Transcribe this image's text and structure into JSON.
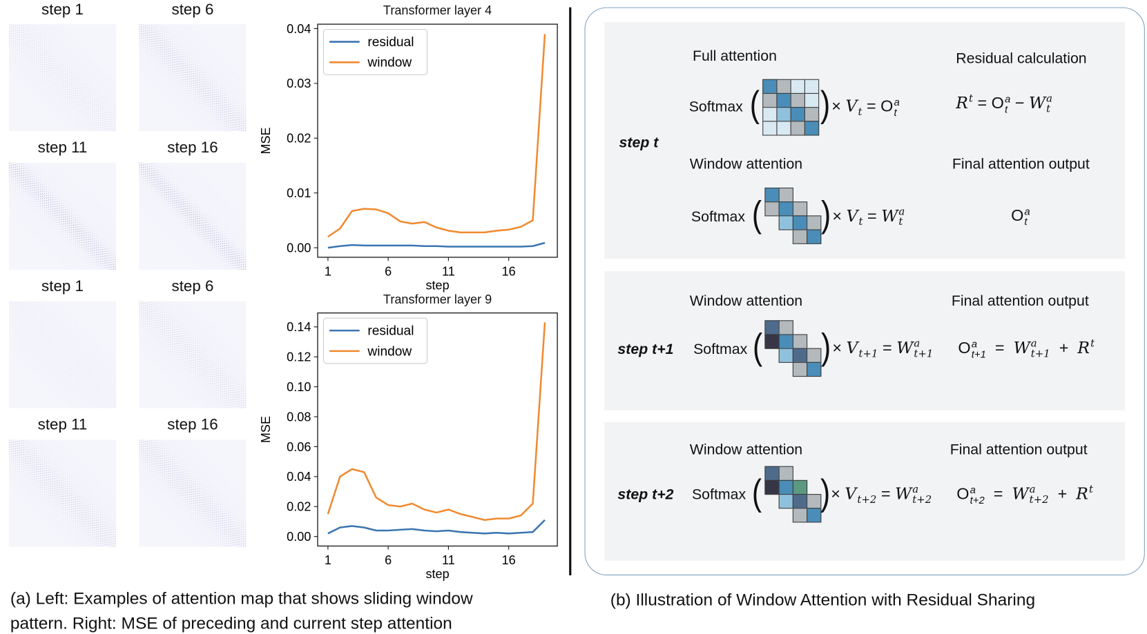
{
  "heatmaps": {
    "labels": [
      "step 1",
      "step 6",
      "step 11",
      "step 16",
      "step 1",
      "step 6",
      "step 11",
      "step 16"
    ]
  },
  "chart_data": [
    {
      "type": "line",
      "title": "Transformer layer 4",
      "xlabel": "step",
      "ylabel": "MSE",
      "x": [
        1,
        2,
        3,
        4,
        5,
        6,
        7,
        8,
        9,
        10,
        11,
        12,
        13,
        14,
        15,
        16,
        17,
        18,
        19
      ],
      "xticks": [
        "1",
        "6",
        "11",
        "16"
      ],
      "yticks": [
        "0.00",
        "0.01",
        "0.02",
        "0.03",
        "0.04"
      ],
      "ylim": [
        0,
        0.04
      ],
      "xlim": [
        1,
        19
      ],
      "legend": "top-left",
      "series": [
        {
          "name": "residual",
          "color": "#3a75b0",
          "values": [
            0.0,
            0.0003,
            0.0005,
            0.0004,
            0.0004,
            0.0004,
            0.0004,
            0.0004,
            0.0003,
            0.0003,
            0.0002,
            0.0002,
            0.0002,
            0.0002,
            0.0002,
            0.0002,
            0.0002,
            0.0003,
            0.0009
          ]
        },
        {
          "name": "window",
          "color": "#f08a30",
          "values": [
            0.002,
            0.0035,
            0.0067,
            0.0071,
            0.007,
            0.0063,
            0.0048,
            0.0044,
            0.0047,
            0.0037,
            0.0031,
            0.0028,
            0.0028,
            0.0028,
            0.0031,
            0.0033,
            0.0038,
            0.005,
            0.039
          ]
        }
      ]
    },
    {
      "type": "line",
      "title": "Transformer layer 9",
      "xlabel": "step",
      "ylabel": "MSE",
      "x": [
        1,
        2,
        3,
        4,
        5,
        6,
        7,
        8,
        9,
        10,
        11,
        12,
        13,
        14,
        15,
        16,
        17,
        18,
        19
      ],
      "xticks": [
        "1",
        "6",
        "11",
        "16"
      ],
      "yticks": [
        "0.00",
        "0.02",
        "0.04",
        "0.06",
        "0.08",
        "0.10",
        "0.12",
        "0.14"
      ],
      "ylim": [
        0,
        0.14
      ],
      "xlim": [
        1,
        19
      ],
      "legend": "top-left",
      "series": [
        {
          "name": "residual",
          "color": "#3a75b0",
          "values": [
            0.002,
            0.006,
            0.007,
            0.006,
            0.004,
            0.004,
            0.0045,
            0.005,
            0.004,
            0.0035,
            0.004,
            0.003,
            0.0025,
            0.002,
            0.0025,
            0.002,
            0.0025,
            0.003,
            0.011
          ]
        },
        {
          "name": "window",
          "color": "#f08a30",
          "values": [
            0.015,
            0.04,
            0.045,
            0.043,
            0.026,
            0.021,
            0.02,
            0.022,
            0.018,
            0.016,
            0.018,
            0.015,
            0.013,
            0.011,
            0.012,
            0.012,
            0.014,
            0.022,
            0.143
          ]
        }
      ]
    }
  ],
  "panel": {
    "step_t": "step t",
    "step_t1": "step t+1",
    "step_t2": "step t+2",
    "full_attention": "Full attention",
    "window_attention": "Window attention",
    "residual_calculation": "Residual calculation",
    "final_output": "Final attention output",
    "softmax": "Softmax",
    "open_paren": "(",
    "close_paren": ")",
    "eq_full": [
      {
        "t": "× ",
        "up": true
      },
      {
        "t": "V",
        "sub": "t"
      },
      {
        "t": " = ",
        "up": true
      },
      {
        "t": "O",
        "up": true,
        "sup": "a",
        "sub": "t"
      }
    ],
    "eq_residual": [
      {
        "t": "R",
        "sup": "t"
      },
      {
        "t": " = ",
        "up": true
      },
      {
        "t": "O",
        "up": true,
        "sup": "a",
        "sub": "t"
      },
      {
        "t": " − ",
        "up": true
      },
      {
        "t": "W",
        "sup": "a",
        "sub": "t"
      }
    ],
    "eq_window_t": [
      {
        "t": "× ",
        "up": true
      },
      {
        "t": "V",
        "sub": "t"
      },
      {
        "t": " = ",
        "up": true
      },
      {
        "t": "W",
        "sup": "a",
        "sub": "t"
      }
    ],
    "eq_final_t": [
      {
        "t": "O",
        "up": true,
        "sup": "a",
        "sub": "t"
      }
    ],
    "eq_window_t1": [
      {
        "t": "× ",
        "up": true
      },
      {
        "t": "V",
        "sub": "t+1"
      },
      {
        "t": " = ",
        "up": true
      },
      {
        "t": "W",
        "sup": "a",
        "sub": "t+1"
      }
    ],
    "eq_final_t1": [
      {
        "t": "O",
        "up": true,
        "sup": "a",
        "sub": "t+1"
      },
      {
        "t": "  =  ",
        "up": true
      },
      {
        "t": "W",
        "sup": "a",
        "sub": "t+1"
      },
      {
        "t": "  +  ",
        "up": true
      },
      {
        "t": "R",
        "sup": "t"
      }
    ],
    "eq_window_t2": [
      {
        "t": "× ",
        "up": true
      },
      {
        "t": "V",
        "sub": "t+2"
      },
      {
        "t": " = ",
        "up": true
      },
      {
        "t": "W",
        "sup": "a",
        "sub": "t+2"
      }
    ],
    "eq_final_t2": [
      {
        "t": "O",
        "up": true,
        "sup": "a",
        "sub": "t+2"
      },
      {
        "t": "  =  ",
        "up": true
      },
      {
        "t": "W",
        "sup": "a",
        "sub": "t+2"
      },
      {
        "t": "  +  ",
        "up": true
      },
      {
        "t": "R",
        "sup": "t"
      }
    ]
  },
  "colors": {
    "B": "#4a8db8",
    "G": "#b3b9bc",
    "L": "#d9e9f2",
    "M": "#8fc1dc",
    "S": "#4f6b8c",
    "D": "#363646",
    "N": "#5b9a80"
  },
  "matrices": {
    "full": [
      "BGLL",
      "GBGL",
      "LMBG",
      "LLGB"
    ],
    "window_t": [
      "BG..",
      "GBG.",
      ".MBG",
      "..GB"
    ],
    "window_t1": [
      "SG..",
      "DBG.",
      ".MSG",
      "..GB"
    ],
    "window_t2": [
      "SG..",
      "DBN.",
      ".MSG",
      "..GB"
    ]
  },
  "captions": {
    "left_line1": "(a) Left: Examples of attention map that shows sliding window",
    "left_line2": "pattern. Right: MSE of preceding and current step attention",
    "right": "(b) Illustration of Window Attention with Residual Sharing"
  }
}
